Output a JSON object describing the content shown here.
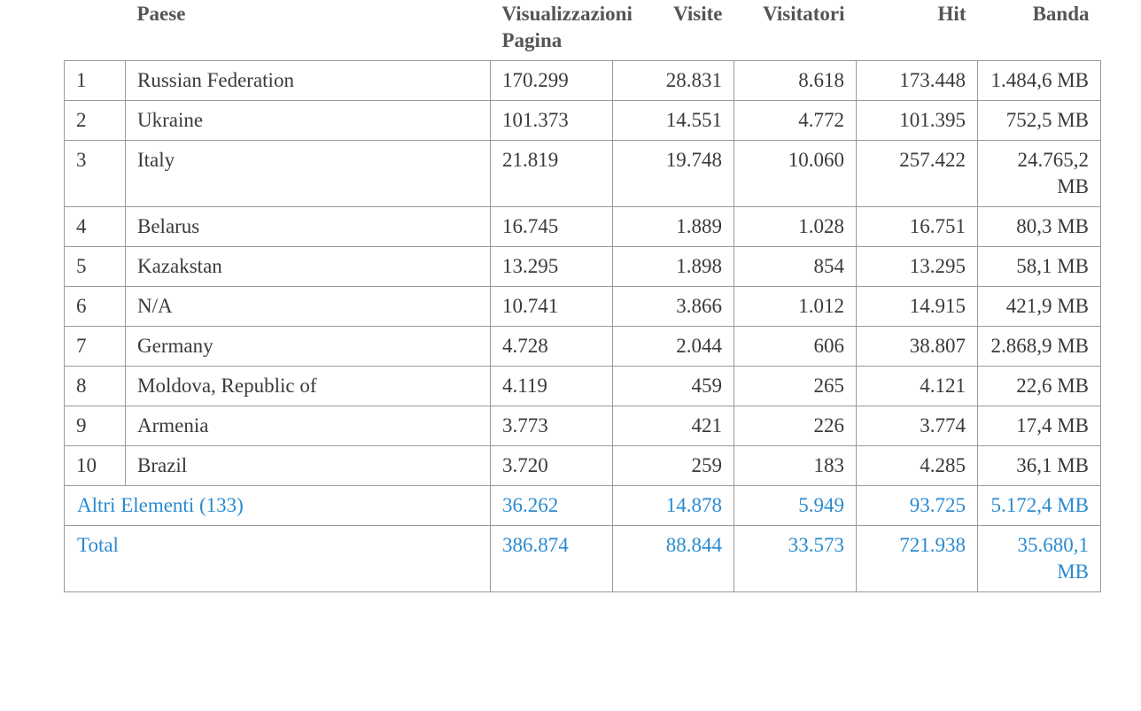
{
  "table": {
    "headers": {
      "rank": "",
      "country": "Paese",
      "views": "Visualizzazioni Pagina",
      "visits": "Visite",
      "visitors": "Visitatori",
      "hits": "Hit",
      "bandwidth": "Banda"
    },
    "rows": [
      {
        "rank": "1",
        "country": "Russian Federation",
        "views": "170.299",
        "visits": "28.831",
        "visitors": "8.618",
        "hits": "173.448",
        "bandwidth": "1.484,6 MB"
      },
      {
        "rank": "2",
        "country": "Ukraine",
        "views": "101.373",
        "visits": "14.551",
        "visitors": "4.772",
        "hits": "101.395",
        "bandwidth": "752,5 MB"
      },
      {
        "rank": "3",
        "country": "Italy",
        "views": "21.819",
        "visits": "19.748",
        "visitors": "10.060",
        "hits": "257.422",
        "bandwidth": "24.765,2 MB"
      },
      {
        "rank": "4",
        "country": "Belarus",
        "views": "16.745",
        "visits": "1.889",
        "visitors": "1.028",
        "hits": "16.751",
        "bandwidth": "80,3 MB"
      },
      {
        "rank": "5",
        "country": "Kazakstan",
        "views": "13.295",
        "visits": "1.898",
        "visitors": "854",
        "hits": "13.295",
        "bandwidth": "58,1 MB"
      },
      {
        "rank": "6",
        "country": "N/A",
        "views": "10.741",
        "visits": "3.866",
        "visitors": "1.012",
        "hits": "14.915",
        "bandwidth": "421,9 MB"
      },
      {
        "rank": "7",
        "country": "Germany",
        "views": "4.728",
        "visits": "2.044",
        "visitors": "606",
        "hits": "38.807",
        "bandwidth": "2.868,9 MB"
      },
      {
        "rank": "8",
        "country": "Moldova, Republic of",
        "views": "4.119",
        "visits": "459",
        "visitors": "265",
        "hits": "4.121",
        "bandwidth": "22,6 MB"
      },
      {
        "rank": "9",
        "country": "Armenia",
        "views": "3.773",
        "visits": "421",
        "visitors": "226",
        "hits": "3.774",
        "bandwidth": "17,4 MB"
      },
      {
        "rank": "10",
        "country": "Brazil",
        "views": "3.720",
        "visits": "259",
        "visitors": "183",
        "hits": "4.285",
        "bandwidth": "36,1 MB"
      }
    ],
    "others": {
      "label": "Altri Elementi (133)",
      "views": "36.262",
      "visits": "14.878",
      "visitors": "5.949",
      "hits": "93.725",
      "bandwidth": "5.172,4 MB"
    },
    "total": {
      "label": "Total",
      "views": "386.874",
      "visits": "88.844",
      "visitors": "33.573",
      "hits": "721.938",
      "bandwidth": "35.680,1 MB"
    }
  },
  "colors": {
    "summary_text": "#2a8ad0",
    "header_text": "#555555",
    "body_text": "#3a3a3a",
    "border": "#9a9a9a"
  }
}
